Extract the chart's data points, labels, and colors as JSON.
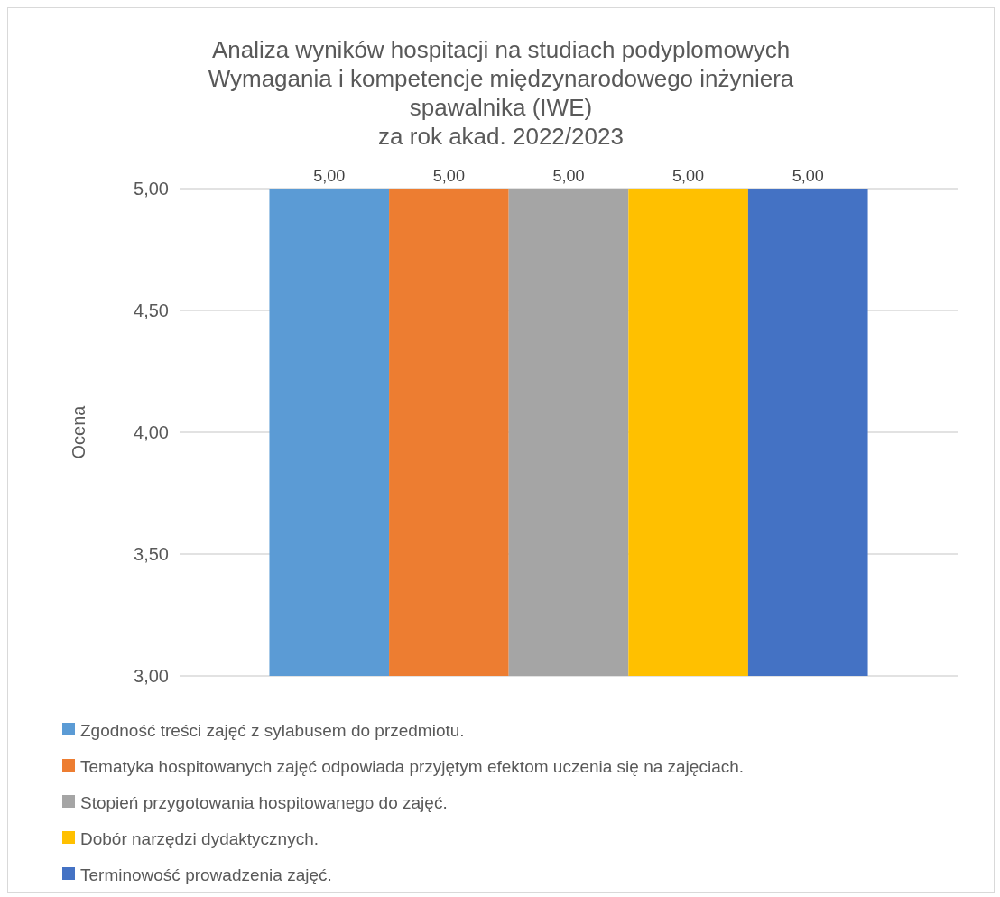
{
  "chart_data": {
    "type": "bar",
    "title": "Analiza wyników hospitacji na studiach podyplomowych\nWymagania i kompetencje międzynarodowego inżyniera\nspawalnika (IWE)\nza rok akad. 2022/2023",
    "ylabel": "Ocena",
    "categories": [
      null
    ],
    "series": [
      {
        "name": "Zgodność treści zajęć z sylabusem do przedmiotu.",
        "color": "#5b9bd5",
        "values": [
          5
        ],
        "value_labels": [
          "5,00"
        ]
      },
      {
        "name": "Tematyka hospitowanych zajęć odpowiada przyjętym efektom uczenia się na zajęciach.",
        "color": "#ed7d31",
        "values": [
          5
        ],
        "value_labels": [
          "5,00"
        ]
      },
      {
        "name": "Stopień przygotowania hospitowanego do zajęć.",
        "color": "#a5a5a5",
        "values": [
          5
        ],
        "value_labels": [
          "5,00"
        ]
      },
      {
        "name": "Dobór narzędzi dydaktycznych.",
        "color": "#ffc000",
        "values": [
          5
        ],
        "value_labels": [
          "5,00"
        ]
      },
      {
        "name": "Terminowość prowadzenia zajęć.",
        "color": "#4472c4",
        "values": [
          5
        ],
        "value_labels": [
          "5,00"
        ]
      }
    ],
    "ylim": [
      3,
      5
    ],
    "yticks": [
      {
        "value": 3,
        "label": "3,00"
      },
      {
        "value": 3.5,
        "label": "3,50"
      },
      {
        "value": 4,
        "label": "4,00"
      },
      {
        "value": 4.5,
        "label": "4,50"
      },
      {
        "value": 5,
        "label": "5,00"
      }
    ],
    "grid": "y",
    "legend": "bottom"
  }
}
